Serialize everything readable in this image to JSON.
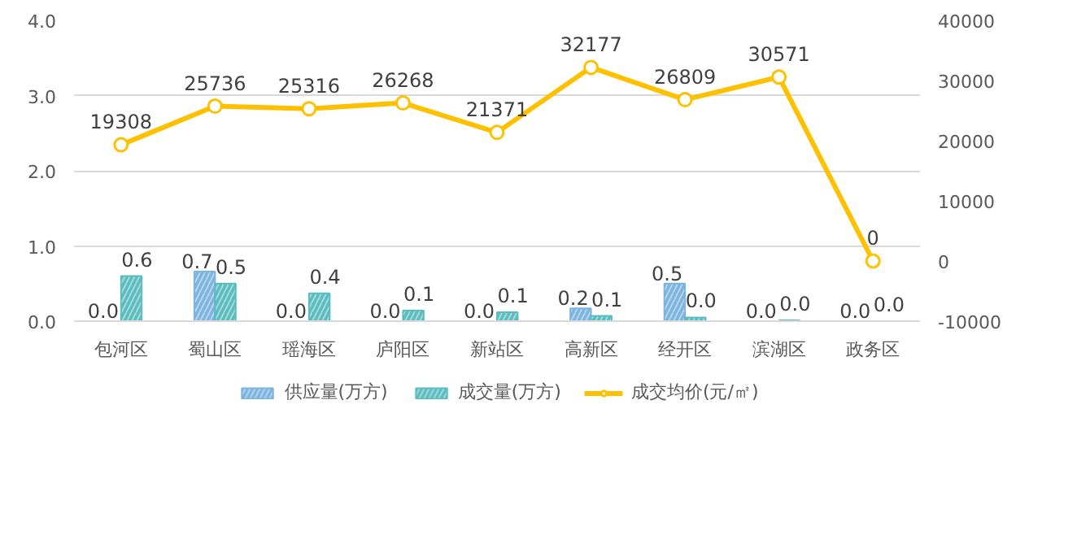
{
  "chart_data": {
    "type": "bar",
    "categories": [
      "包河区",
      "蜀山区",
      "瑶海区",
      "庐阳区",
      "新站区",
      "高新区",
      "经开区",
      "滨湖区",
      "政务区"
    ],
    "ylim": [
      0,
      4
    ],
    "yticks": [
      {
        "value": 0,
        "label": "0.0"
      },
      {
        "value": 1,
        "label": "1.0"
      },
      {
        "value": 2,
        "label": "2.0"
      },
      {
        "value": 3,
        "label": "3.0"
      },
      {
        "value": 4,
        "label": "4.0"
      }
    ],
    "y2lim": [
      -10000,
      40000
    ],
    "y2ticks": [
      -10000,
      0,
      10000,
      20000,
      30000,
      40000
    ],
    "grid": "y",
    "legend": "bottom",
    "series": [
      {
        "name": "供应量(万方)",
        "color": "#7cb4e0",
        "values": [
          0,
          0.66,
          0,
          0,
          0,
          0.17,
          0.5,
          0,
          0
        ],
        "value_labels": [
          "0.0",
          "0.7",
          "0.0",
          "0.0",
          "0.0",
          "0.2",
          "0.5",
          "0.0",
          "0.0"
        ]
      },
      {
        "name": "成交量(万方)",
        "color": "#5bbcc0",
        "values": [
          0.6,
          0.5,
          0.37,
          0.14,
          0.12,
          0.07,
          0.05,
          0.01,
          0
        ],
        "value_labels": [
          "0.6",
          "0.5",
          "0.4",
          "0.1",
          "0.1",
          "0.1",
          "0.0",
          "0.0",
          "0.0"
        ]
      },
      {
        "name": "成交均价(元/㎡)",
        "type": "line",
        "axis": "y2",
        "color": "#ffc000",
        "marker": "circle",
        "values": [
          19308,
          25736,
          25316,
          26268,
          21371,
          32177,
          26809,
          30571,
          0
        ],
        "data_labels": true
      }
    ]
  }
}
